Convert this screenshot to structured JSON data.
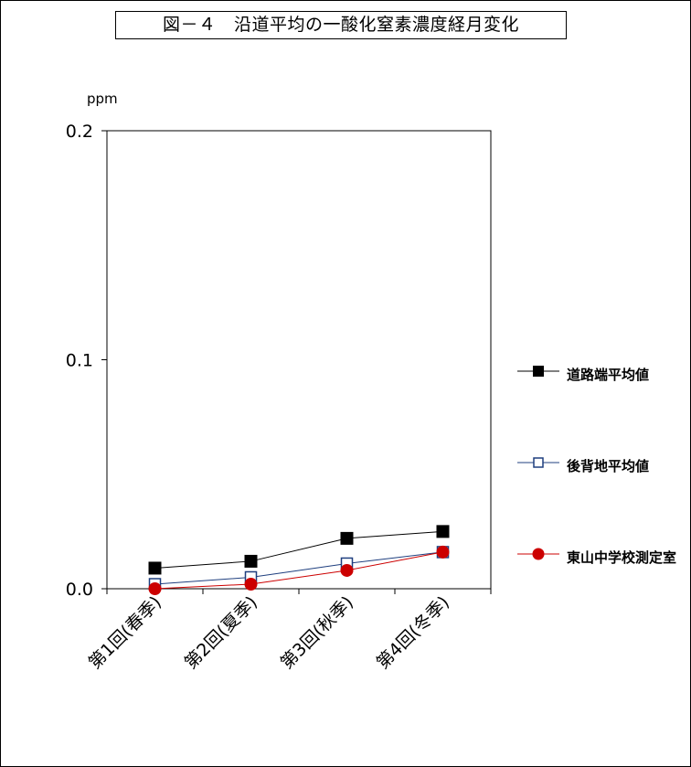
{
  "chart_data": {
    "type": "line",
    "title": "図－４　沿道平均の一酸化窒素濃度経月変化",
    "ylabel": "ppm",
    "categories": [
      "第1回(春季)",
      "第2回(夏季)",
      "第3回(秋季)",
      "第4回(冬季)"
    ],
    "ylim": [
      0.0,
      0.2
    ],
    "yticks": [
      "0.0",
      "0.1",
      "0.2"
    ],
    "ytick_values": [
      0.0,
      0.1,
      0.2
    ],
    "grid": false,
    "legend_position": "right",
    "series": [
      {
        "name": "道路端平均値",
        "values": [
          0.009,
          0.012,
          0.022,
          0.025
        ],
        "color": "#000000",
        "marker": "filled-square"
      },
      {
        "name": "後背地平均値",
        "values": [
          0.002,
          0.005,
          0.011,
          0.016
        ],
        "color": "#1f3f7f",
        "marker": "open-square"
      },
      {
        "name": "東山中学校測定室",
        "values": [
          0.0,
          0.002,
          0.008,
          0.016
        ],
        "color": "#cc0000",
        "marker": "filled-circle"
      }
    ]
  }
}
